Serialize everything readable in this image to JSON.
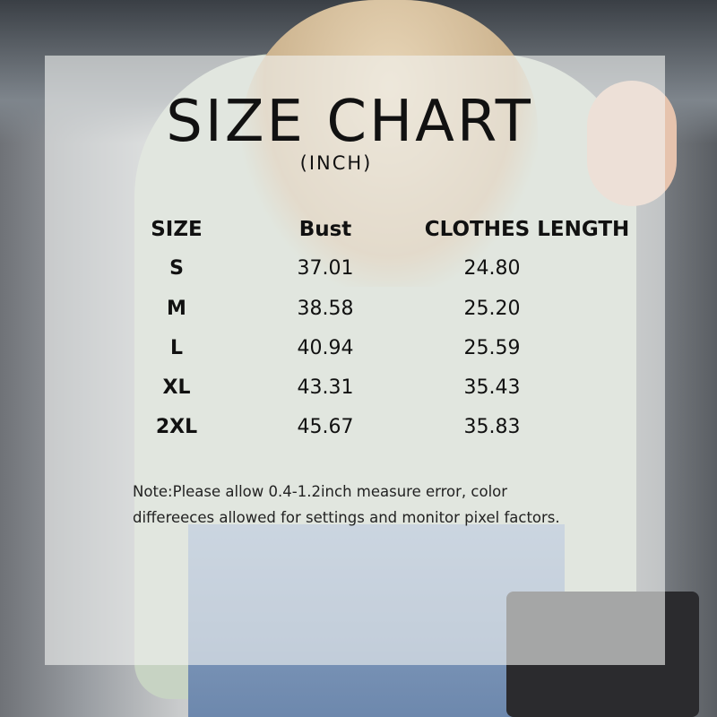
{
  "title": "SIZE CHART",
  "unit": "(INCH)",
  "headers": [
    "SIZE",
    "Bust",
    "CLOTHES LENGTH"
  ],
  "rows": [
    {
      "size": "S",
      "bust": "37.01",
      "length": "24.80"
    },
    {
      "size": "M",
      "bust": "38.58",
      "length": "25.20"
    },
    {
      "size": "L",
      "bust": "40.94",
      "length": "25.59"
    },
    {
      "size": "XL",
      "bust": "43.31",
      "length": "35.43"
    },
    {
      "size": "2XL",
      "bust": "45.67",
      "length": "35.83"
    }
  ],
  "note": [
    "Note:Please allow 0.4-1.2inch measure error, color",
    "differeeces allowed for settings and monitor pixel factors."
  ]
}
